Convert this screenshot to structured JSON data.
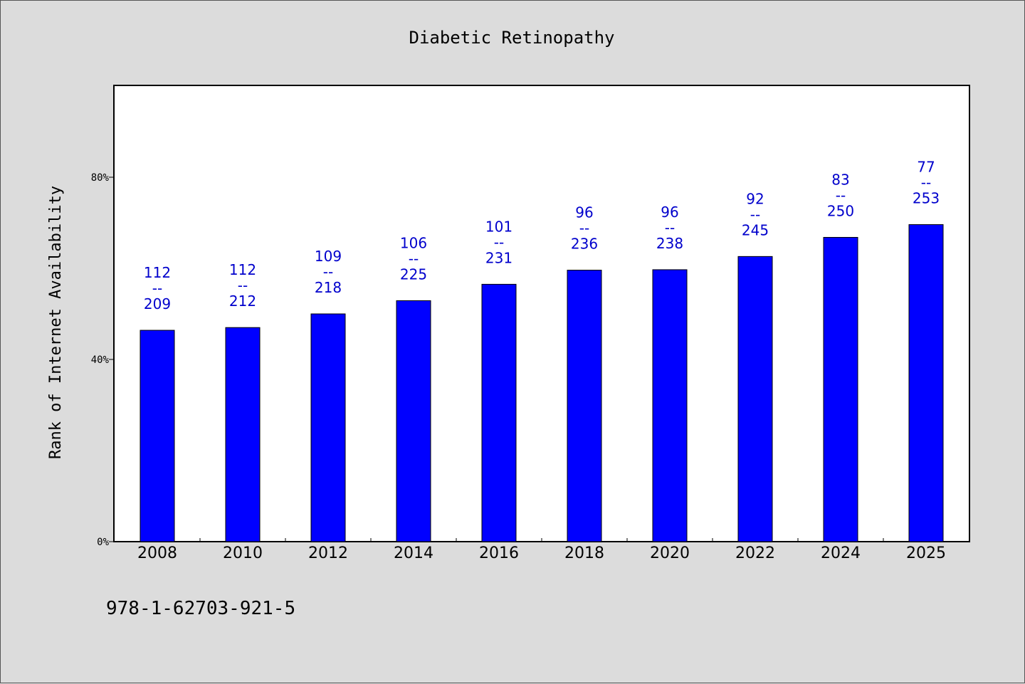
{
  "chart_data": {
    "type": "bar",
    "title": "Diabetic Retinopathy",
    "xlabel": "",
    "ylabel": "Rank of Internet Availability",
    "y_tick_labels": [
      "0%",
      "40%",
      "80%"
    ],
    "y_ticks": [
      0,
      40,
      80
    ],
    "ylim": [
      0,
      100
    ],
    "categories": [
      "2008",
      "2010",
      "2012",
      "2014",
      "2016",
      "2018",
      "2020",
      "2022",
      "2024",
      "2025"
    ],
    "values": [
      46.4,
      47.0,
      50.0,
      52.9,
      56.5,
      59.6,
      59.7,
      62.6,
      66.8,
      69.6
    ],
    "value_labels": [
      {
        "top": "112",
        "mid": "--",
        "bottom": "209"
      },
      {
        "top": "112",
        "mid": "--",
        "bottom": "212"
      },
      {
        "top": "109",
        "mid": "--",
        "bottom": "218"
      },
      {
        "top": "106",
        "mid": "--",
        "bottom": "225"
      },
      {
        "top": "101",
        "mid": "--",
        "bottom": "231"
      },
      {
        "top": "96",
        "mid": "--",
        "bottom": "236"
      },
      {
        "top": "96",
        "mid": "--",
        "bottom": "238"
      },
      {
        "top": "92",
        "mid": "--",
        "bottom": "245"
      },
      {
        "top": "83",
        "mid": "--",
        "bottom": "250"
      },
      {
        "top": "77",
        "mid": "--",
        "bottom": "253"
      }
    ],
    "bar_color": "#0000ff",
    "label_color": "#0000cc",
    "grid": false
  },
  "footer_text": "978-1-62703-921-5"
}
